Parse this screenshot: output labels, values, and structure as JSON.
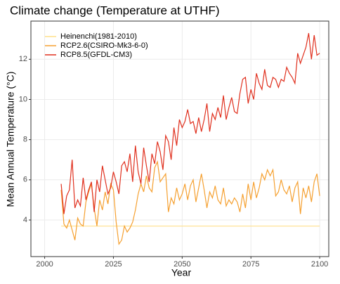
{
  "chart_data": {
    "type": "line",
    "title": "Climate change (Temperature at UTHF)",
    "x_label": "Year",
    "y_label": "Mean Annual Temperature (°C)",
    "x": [
      2006,
      2007,
      2008,
      2009,
      2010,
      2011,
      2012,
      2013,
      2014,
      2015,
      2016,
      2017,
      2018,
      2019,
      2020,
      2021,
      2022,
      2023,
      2024,
      2025,
      2026,
      2027,
      2028,
      2029,
      2030,
      2031,
      2032,
      2033,
      2034,
      2035,
      2036,
      2037,
      2038,
      2039,
      2040,
      2041,
      2042,
      2043,
      2044,
      2045,
      2046,
      2047,
      2048,
      2049,
      2050,
      2051,
      2052,
      2053,
      2054,
      2055,
      2056,
      2057,
      2058,
      2059,
      2060,
      2061,
      2062,
      2063,
      2064,
      2065,
      2066,
      2067,
      2068,
      2069,
      2070,
      2071,
      2072,
      2073,
      2074,
      2075,
      2076,
      2077,
      2078,
      2079,
      2080,
      2081,
      2082,
      2083,
      2084,
      2085,
      2086,
      2087,
      2088,
      2089,
      2090,
      2091,
      2092,
      2093,
      2094,
      2095,
      2096,
      2097,
      2098,
      2099,
      2100
    ],
    "series": [
      {
        "name": "Heinenchi(1981-2010)",
        "color": "#ffe08a",
        "values": [
          3.7,
          3.7,
          3.7,
          3.7,
          3.7,
          3.7,
          3.7,
          3.7,
          3.7,
          3.7,
          3.7,
          3.7,
          3.7,
          3.7,
          3.7,
          3.7,
          3.7,
          3.7,
          3.7,
          3.7,
          3.7,
          3.7,
          3.7,
          3.7,
          3.7,
          3.7,
          3.7,
          3.7,
          3.7,
          3.7,
          3.7,
          3.7,
          3.7,
          3.7,
          3.7,
          3.7,
          3.7,
          3.7,
          3.7,
          3.7,
          3.7,
          3.7,
          3.7,
          3.7,
          3.7,
          3.7,
          3.7,
          3.7,
          3.7,
          3.7,
          3.7,
          3.7,
          3.7,
          3.7,
          3.7,
          3.7,
          3.7,
          3.7,
          3.7,
          3.7,
          3.7,
          3.7,
          3.7,
          3.7,
          3.7,
          3.7,
          3.7,
          3.7,
          3.7,
          3.7,
          3.7,
          3.7,
          3.7,
          3.7,
          3.7,
          3.7,
          3.7,
          3.7,
          3.7,
          3.7,
          3.7,
          3.7,
          3.7,
          3.7,
          3.7,
          3.7,
          3.7,
          3.7,
          3.7,
          3.7,
          3.7,
          3.7,
          3.7,
          3.7,
          3.7
        ]
      },
      {
        "name": "RCP2.6(CSIRO-Mk3-6-0)",
        "color": "#f5a030",
        "values": [
          5.5,
          3.8,
          3.6,
          4.0,
          3.5,
          3.0,
          4.1,
          3.8,
          3.7,
          4.9,
          5.4,
          5.8,
          4.6,
          3.7,
          5.0,
          4.5,
          5.4,
          4.8,
          5.8,
          5.5,
          3.9,
          2.8,
          3.0,
          3.7,
          3.4,
          3.6,
          3.9,
          4.5,
          5.3,
          5.8,
          5.4,
          6.2,
          5.6,
          5.4,
          6.6,
          6.9,
          5.9,
          6.1,
          6.3,
          4.4,
          5.1,
          4.8,
          5.6,
          5.0,
          5.3,
          5.8,
          5.0,
          5.7,
          6.0,
          4.9,
          5.6,
          6.3,
          5.5,
          4.6,
          5.4,
          5.1,
          5.7,
          5.0,
          4.8,
          5.6,
          4.7,
          5.0,
          4.8,
          5.1,
          4.9,
          4.4,
          5.3,
          4.6,
          5.8,
          5.0,
          5.9,
          5.1,
          5.6,
          6.3,
          6.0,
          6.5,
          6.2,
          6.5,
          5.2,
          5.4,
          6.0,
          5.5,
          5.3,
          5.7,
          4.9,
          5.6,
          5.9,
          4.3,
          5.6,
          5.1,
          5.7,
          4.9,
          5.9,
          6.3,
          5.2
        ]
      },
      {
        "name": "RCP8.5(GFDL-CM3)",
        "color": "#e0301e",
        "values": [
          5.8,
          4.3,
          5.2,
          5.5,
          7.0,
          4.6,
          5.0,
          4.7,
          6.1,
          5.0,
          5.5,
          5.9,
          4.4,
          6.0,
          5.4,
          6.7,
          6.0,
          5.3,
          5.6,
          6.4,
          5.9,
          5.3,
          6.7,
          6.9,
          6.4,
          7.3,
          5.9,
          7.7,
          6.4,
          5.8,
          7.6,
          6.7,
          5.9,
          7.3,
          6.8,
          7.9,
          7.4,
          6.5,
          8.2,
          7.9,
          7.0,
          8.6,
          7.7,
          9.0,
          8.6,
          8.9,
          9.5,
          8.8,
          8.9,
          8.3,
          9.1,
          8.4,
          9.0,
          9.8,
          8.4,
          9.3,
          9.0,
          9.6,
          9.1,
          10.2,
          9.0,
          9.6,
          10.1,
          9.4,
          9.3,
          10.3,
          11.0,
          11.1,
          9.8,
          10.5,
          10.0,
          11.3,
          10.8,
          10.5,
          11.5,
          10.7,
          10.6,
          11.1,
          11.0,
          10.6,
          11.0,
          10.9,
          11.6,
          11.3,
          11.1,
          10.8,
          12.3,
          11.8,
          12.2,
          12.6,
          13.3,
          12.0,
          13.2,
          12.2,
          12.3
        ]
      }
    ],
    "xlim": [
      1995,
      2103.3
    ],
    "ylim": [
      2.18,
      13.9
    ],
    "xticks": [
      2000,
      2025,
      2050,
      2075,
      2100
    ],
    "yticks": [
      4,
      6,
      8,
      10,
      12
    ],
    "grid": true,
    "legend": "top-left"
  }
}
